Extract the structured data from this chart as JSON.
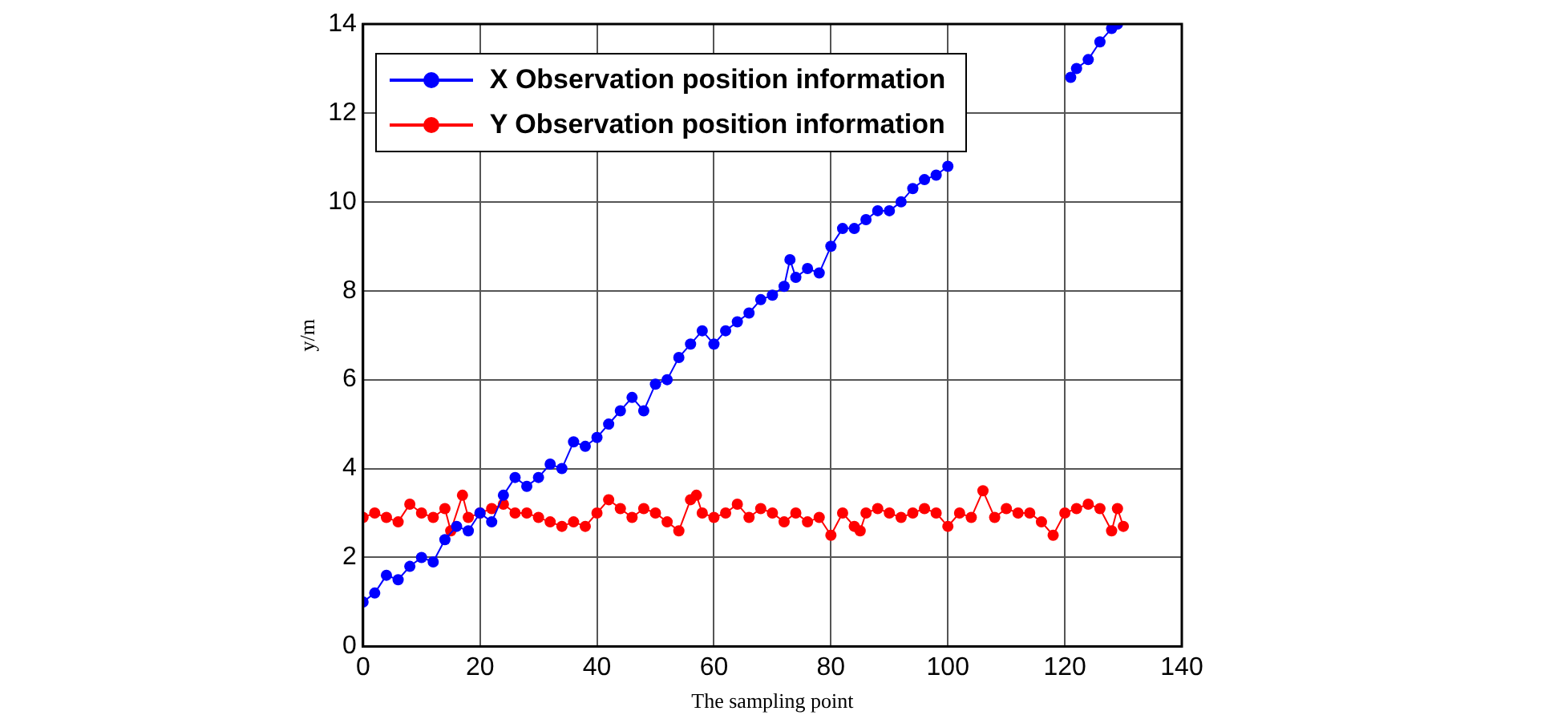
{
  "chart_data": {
    "type": "line",
    "xlabel": "The sampling point",
    "ylabel": "y/m",
    "xlim": [
      0,
      140
    ],
    "xticks": [
      0,
      20,
      40,
      60,
      80,
      100,
      120,
      140
    ],
    "ylim": [
      0,
      14
    ],
    "yticks": [
      0,
      2,
      4,
      6,
      8,
      10,
      12,
      14
    ],
    "grid": true,
    "legend": "top left",
    "marker": "circle",
    "line_style": "solid",
    "series": [
      {
        "name": "X Observation position information",
        "color": "#0000ff",
        "x": [
          0,
          2,
          4,
          6,
          8,
          10,
          12,
          14,
          16,
          18,
          20,
          22,
          24,
          26,
          28,
          30,
          32,
          34,
          36,
          38,
          40,
          42,
          44,
          46,
          48,
          50,
          52,
          54,
          56,
          58,
          60,
          62,
          64,
          66,
          68,
          70,
          72,
          73,
          74,
          76,
          78,
          80,
          82,
          84,
          86,
          88,
          90,
          92,
          94,
          96,
          98,
          100,
          102,
          104,
          106,
          108,
          110,
          112,
          114,
          116,
          118,
          120,
          121,
          122,
          124,
          126,
          128,
          129
        ],
        "values": [
          1.0,
          1.2,
          1.6,
          1.5,
          1.8,
          2.0,
          1.9,
          2.4,
          2.7,
          2.6,
          3.0,
          2.8,
          3.4,
          3.8,
          3.6,
          3.8,
          4.1,
          4.0,
          4.6,
          4.5,
          4.7,
          5.0,
          5.3,
          5.6,
          5.3,
          5.9,
          6.0,
          6.5,
          6.8,
          7.1,
          6.8,
          7.1,
          7.3,
          7.5,
          7.8,
          7.9,
          8.1,
          8.7,
          8.3,
          8.5,
          8.4,
          9.0,
          9.4,
          9.4,
          9.6,
          9.8,
          9.8,
          10.0,
          10.3,
          10.5,
          10.6,
          10.8,
          null,
          null,
          null,
          null,
          null,
          null,
          null,
          null,
          null,
          null,
          12.8,
          13.0,
          13.2,
          13.6,
          13.9,
          14.0
        ]
      },
      {
        "name": "Y Observation position information",
        "color": "#ff0000",
        "x": [
          0,
          2,
          4,
          6,
          8,
          10,
          12,
          14,
          15,
          17,
          18,
          20,
          22,
          24,
          26,
          28,
          30,
          32,
          34,
          36,
          38,
          40,
          42,
          44,
          46,
          48,
          50,
          52,
          54,
          56,
          57,
          58,
          60,
          62,
          64,
          66,
          68,
          70,
          72,
          74,
          76,
          78,
          80,
          82,
          84,
          85,
          86,
          88,
          90,
          92,
          94,
          96,
          98,
          100,
          102,
          104,
          106,
          108,
          110,
          112,
          114,
          116,
          118,
          120,
          122,
          124,
          126,
          128,
          129,
          130
        ],
        "values": [
          2.9,
          3.0,
          2.9,
          2.8,
          3.2,
          3.0,
          2.9,
          3.1,
          2.6,
          3.4,
          2.9,
          3.0,
          3.1,
          3.2,
          3.0,
          3.0,
          2.9,
          2.8,
          2.7,
          2.8,
          2.7,
          3.0,
          3.3,
          3.1,
          2.9,
          3.1,
          3.0,
          2.8,
          2.6,
          3.3,
          3.4,
          3.0,
          2.9,
          3.0,
          3.2,
          2.9,
          3.1,
          3.0,
          2.8,
          3.0,
          2.8,
          2.9,
          2.5,
          3.0,
          2.7,
          2.6,
          3.0,
          3.1,
          3.0,
          2.9,
          3.0,
          3.1,
          3.0,
          2.7,
          3.0,
          2.9,
          3.5,
          2.9,
          3.1,
          3.0,
          3.0,
          2.8,
          2.5,
          3.0,
          3.1,
          3.2,
          3.1,
          2.6,
          3.1,
          2.7
        ]
      }
    ]
  }
}
